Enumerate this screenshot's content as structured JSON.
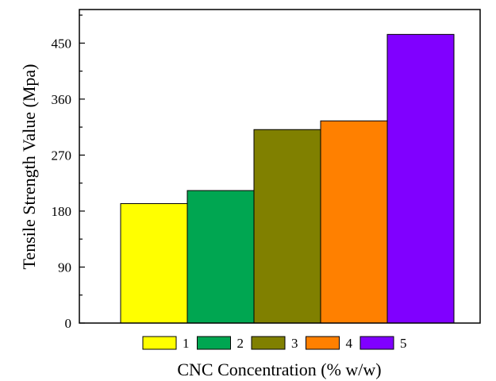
{
  "chart_data": {
    "type": "bar",
    "title": "",
    "xlabel": "CNC Concentration (% w/w)",
    "ylabel": "Tensile Strength Value (Mpa)",
    "ylim": [
      0,
      504
    ],
    "yticks": [
      0,
      90,
      180,
      270,
      360,
      450
    ],
    "grid": false,
    "legend_position": "bottom",
    "series": [
      {
        "name": "1",
        "value": 192,
        "color": "#ffff00"
      },
      {
        "name": "2",
        "value": 213,
        "color": "#00a651"
      },
      {
        "name": "3",
        "value": 311,
        "color": "#808000"
      },
      {
        "name": "4",
        "value": 325,
        "color": "#ff8000"
      },
      {
        "name": "5",
        "value": 464,
        "color": "#8000ff"
      }
    ]
  }
}
